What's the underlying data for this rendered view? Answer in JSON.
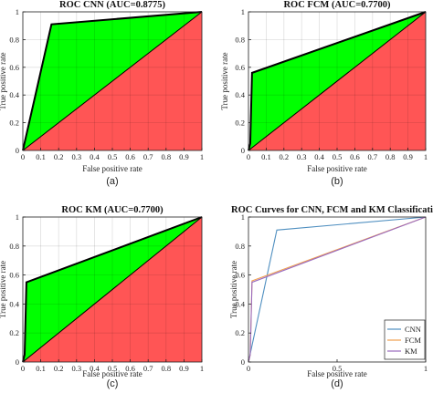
{
  "chart_data": [
    {
      "type": "area",
      "title": "ROC CNN (AUC=0.8775)",
      "xlabel": "False positive rate",
      "ylabel": "True positive rate",
      "caption": "(a)",
      "xlim": [
        0,
        1
      ],
      "ylim": [
        0,
        1
      ],
      "x_ticks": [
        "0",
        "0.1",
        "0.2",
        "0.3",
        "0.4",
        "0.5",
        "0.6",
        "0.7",
        "0.8",
        "0.9",
        "1"
      ],
      "y_ticks": [
        "0",
        "0.2",
        "0.4",
        "0.6",
        "0.8",
        "1"
      ],
      "grid": true,
      "series": [
        {
          "x": [
            0,
            0.16,
            1
          ],
          "y": [
            0,
            0.91,
            1
          ],
          "color": "#000000"
        }
      ],
      "diagonal": {
        "x": [
          0,
          1
        ],
        "y": [
          0,
          1
        ]
      },
      "fill_above_diagonal": "#00ff00",
      "fill_below_diagonal": "#ff5555"
    },
    {
      "type": "area",
      "title": "ROC FCM (AUC=0.7700)",
      "xlabel": "False positive rate",
      "ylabel": "True positive rate",
      "caption": "(b)",
      "xlim": [
        0,
        1
      ],
      "ylim": [
        0,
        1
      ],
      "x_ticks": [
        "0",
        "0.1",
        "0.2",
        "0.3",
        "0.4",
        "0.5",
        "0.6",
        "0.7",
        "0.8",
        "0.9",
        "1"
      ],
      "y_ticks": [
        "0",
        "0.2",
        "0.4",
        "0.6",
        "0.8",
        "1"
      ],
      "grid": true,
      "series": [
        {
          "x": [
            0,
            0.01,
            0.02,
            1
          ],
          "y": [
            0,
            0.05,
            0.56,
            1
          ],
          "color": "#000000"
        }
      ],
      "diagonal": {
        "x": [
          0,
          1
        ],
        "y": [
          0,
          1
        ]
      },
      "fill_above_diagonal": "#00ff00",
      "fill_below_diagonal": "#ff5555"
    },
    {
      "type": "area",
      "title": "ROC KM (AUC=0.7700)",
      "xlabel": "False positive rate",
      "ylabel": "True positive rate",
      "caption": "(c)",
      "xlim": [
        0,
        1
      ],
      "ylim": [
        0,
        1
      ],
      "x_ticks": [
        "0",
        "0.1",
        "0.2",
        "0.3",
        "0.4",
        "0.5",
        "0.6",
        "0.7",
        "0.8",
        "0.9",
        "1"
      ],
      "y_ticks": [
        "0",
        "0.2",
        "0.4",
        "0.6",
        "0.8",
        "1"
      ],
      "grid": true,
      "series": [
        {
          "x": [
            0,
            0.01,
            0.02,
            1
          ],
          "y": [
            0,
            0.05,
            0.55,
            1
          ],
          "color": "#000000"
        }
      ],
      "diagonal": {
        "x": [
          0,
          1
        ],
        "y": [
          0,
          1
        ]
      },
      "fill_above_diagonal": "#00ff00",
      "fill_below_diagonal": "#ff5555"
    },
    {
      "type": "line",
      "title": "ROC Curves for CNN, FCM and KM Classification",
      "xlabel": "False positive rate",
      "ylabel": "True positive rate",
      "caption": "(d)",
      "xlim": [
        0,
        1
      ],
      "ylim": [
        0,
        1
      ],
      "x_ticks": [
        "0",
        "0.5",
        "1"
      ],
      "y_ticks": [
        "0",
        "0.2",
        "0.4",
        "0.6",
        "0.8",
        "1"
      ],
      "grid": false,
      "legend_position": "bottom-right",
      "series": [
        {
          "name": "CNN",
          "x": [
            0,
            0.16,
            1
          ],
          "y": [
            0,
            0.91,
            1
          ],
          "color": "#4f8fc0"
        },
        {
          "name": "FCM",
          "x": [
            0,
            0.01,
            0.02,
            1
          ],
          "y": [
            0,
            0.05,
            0.56,
            1
          ],
          "color": "#f0a050"
        },
        {
          "name": "KM",
          "x": [
            0,
            0.01,
            0.02,
            1
          ],
          "y": [
            0,
            0.05,
            0.55,
            1
          ],
          "color": "#9a6bbf"
        }
      ]
    }
  ]
}
